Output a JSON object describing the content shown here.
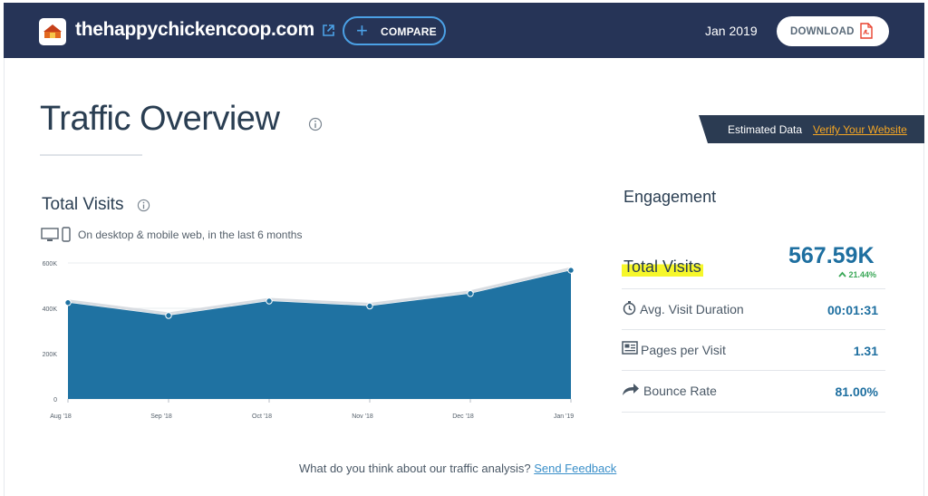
{
  "header": {
    "site_name": "thehappychickencoop.com",
    "compare_label": "COMPARE",
    "date": "Jan 2019",
    "download_label": "DOWNLOAD"
  },
  "page": {
    "title": "Traffic Overview"
  },
  "badge": {
    "estimated_text": "Estimated Data",
    "verify_link": "Verify Your Website"
  },
  "total_visits_section": {
    "title": "Total Visits",
    "subtitle": "On desktop & mobile web, in the last 6 months"
  },
  "chart_data": {
    "type": "area",
    "x": [
      "Aug '18",
      "Sep '18",
      "Oct '18",
      "Nov '18",
      "Dec '18",
      "Jan '19"
    ],
    "values": [
      425000,
      368000,
      432000,
      410000,
      465000,
      567590
    ],
    "ylim": [
      0,
      600000
    ],
    "yticks": [
      "0",
      "200K",
      "400K",
      "600K"
    ],
    "ytick_values": [
      0,
      200000,
      400000,
      600000
    ],
    "grid": true,
    "fill_color": "#1f72a2",
    "line_color": "#d9dde2",
    "point_color": "#1f72a2"
  },
  "engagement": {
    "title": "Engagement",
    "total_visits_label": "Total Visits",
    "total_visits_value": "567.59K",
    "total_visits_change": "21.44%",
    "change_color": "#3aa757",
    "rows": [
      {
        "icon": "stopwatch-icon",
        "label": "Avg. Visit Duration",
        "value": "00:01:31"
      },
      {
        "icon": "pages-icon",
        "label": "Pages per Visit",
        "value": "1.31"
      },
      {
        "icon": "bounce-arrow-icon",
        "label": "Bounce Rate",
        "value": "81.00%"
      }
    ]
  },
  "feedback": {
    "question": "What do you think about our traffic analysis?",
    "link": "Send Feedback"
  }
}
